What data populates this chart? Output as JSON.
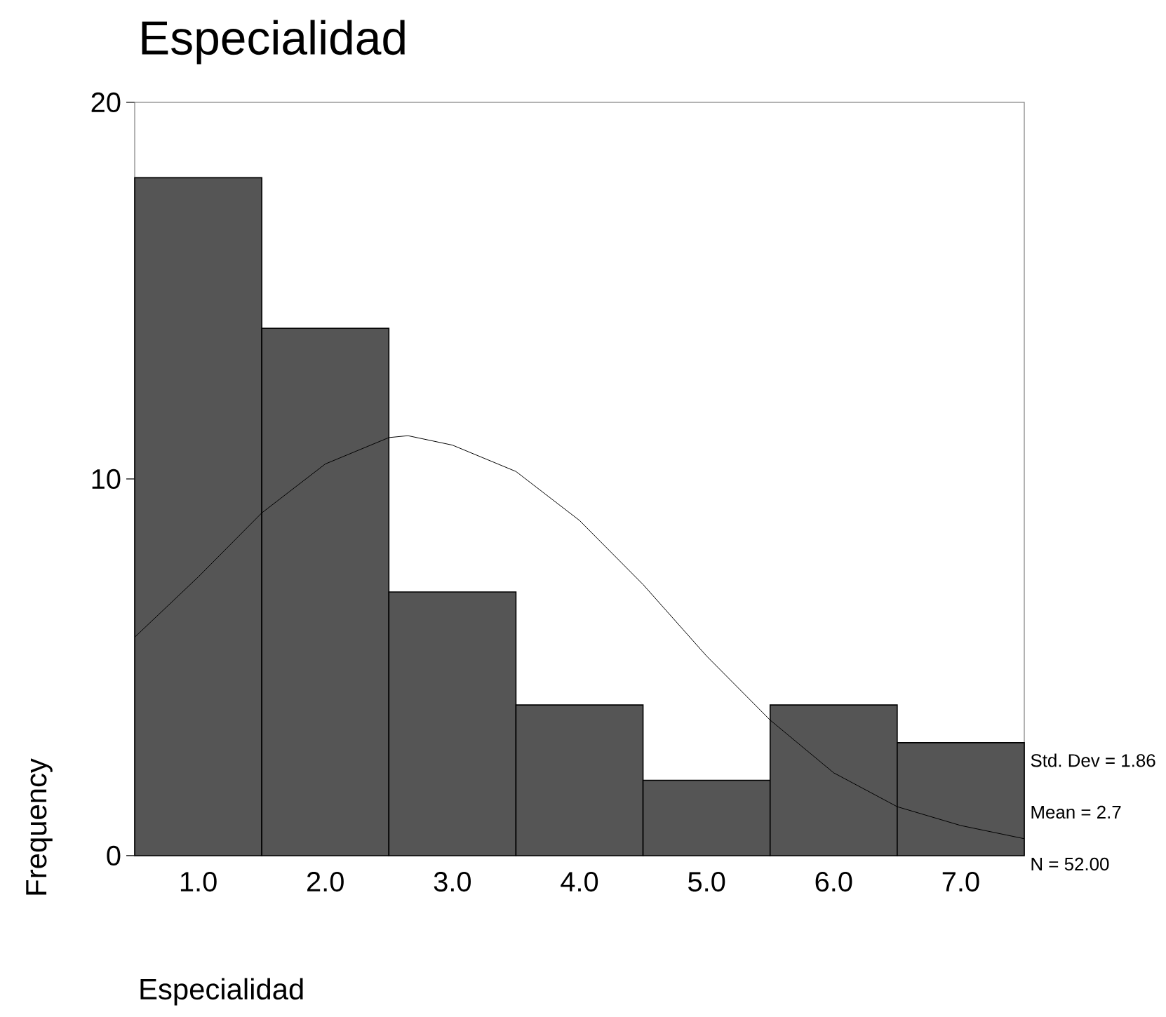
{
  "chart_data": {
    "type": "histogram",
    "title": "Especialidad",
    "xlabel": "Especialidad",
    "ylabel": "Frequency",
    "bins": [
      0.5,
      1.5,
      2.5,
      3.5,
      4.5,
      5.5,
      6.5,
      7.5
    ],
    "values": [
      18,
      14,
      7,
      4,
      2,
      4,
      3
    ],
    "color": "#555555",
    "series": [
      {
        "type": "line",
        "color": "#000000",
        "x": [
          0.5,
          1.0,
          1.5,
          2.0,
          2.5,
          2.65,
          3.0,
          3.5,
          4.0,
          4.5,
          5.0,
          5.5,
          6.0,
          6.5,
          7.0,
          7.5
        ],
        "values": [
          5.8,
          7.4,
          9.1,
          10.4,
          11.1,
          11.15,
          10.9,
          10.2,
          8.9,
          7.2,
          5.3,
          3.6,
          2.2,
          1.3,
          0.8,
          0.45
        ]
      }
    ],
    "xlim": [
      0.5,
      7.5
    ],
    "ylim": [
      0,
      20
    ],
    "xticks": [
      {
        "value": 1,
        "label": "1.0"
      },
      {
        "value": 2,
        "label": "2.0"
      },
      {
        "value": 3,
        "label": "3.0"
      },
      {
        "value": 4,
        "label": "4.0"
      },
      {
        "value": 5,
        "label": "5.0"
      },
      {
        "value": 6,
        "label": "6.0"
      },
      {
        "value": 7,
        "label": "7.0"
      }
    ],
    "yticks": [
      0,
      10,
      20
    ],
    "annotations": [
      "Std. Dev = 1.86",
      "Mean = 2.7",
      "N = 52.00"
    ]
  }
}
